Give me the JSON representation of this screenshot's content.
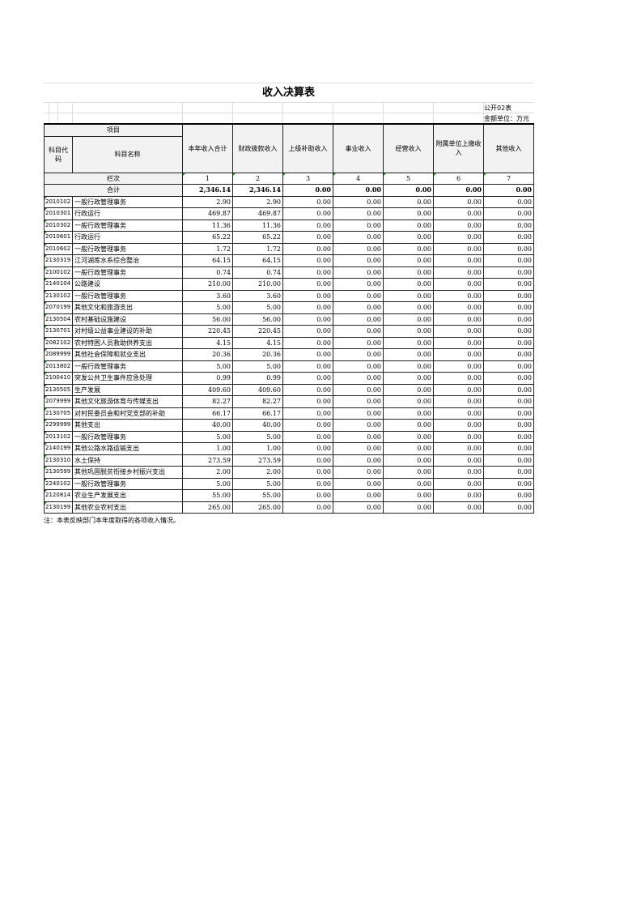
{
  "title": "收入决算表",
  "form_no": "公开02表",
  "unit": "金额单位：万元",
  "headers": {
    "item": "项目",
    "code": "科目代码",
    "name": "科目名称",
    "columns": [
      "本年收入合计",
      "财政拨款收入",
      "上级补助收入",
      "事业收入",
      "经营收入",
      "附属单位上缴收入",
      "其他收入"
    ],
    "index_label": "栏次",
    "index": [
      "1",
      "2",
      "3",
      "4",
      "5",
      "6",
      "7"
    ]
  },
  "total": {
    "label": "合计",
    "values": [
      "2,346.14",
      "2,346.14",
      "0.00",
      "0.00",
      "0.00",
      "0.00",
      "0.00"
    ]
  },
  "rows": [
    {
      "code": "2010102",
      "name": "一般行政管理事务",
      "values": [
        "2.90",
        "2.90",
        "0.00",
        "0.00",
        "0.00",
        "0.00",
        "0.00"
      ]
    },
    {
      "code": "2010301",
      "name": "行政运行",
      "values": [
        "469.87",
        "469.87",
        "0.00",
        "0.00",
        "0.00",
        "0.00",
        "0.00"
      ]
    },
    {
      "code": "2010302",
      "name": "一般行政管理事务",
      "values": [
        "11.36",
        "11.36",
        "0.00",
        "0.00",
        "0.00",
        "0.00",
        "0.00"
      ]
    },
    {
      "code": "2010601",
      "name": "行政运行",
      "values": [
        "65.22",
        "65.22",
        "0.00",
        "0.00",
        "0.00",
        "0.00",
        "0.00"
      ]
    },
    {
      "code": "2010602",
      "name": "一般行政管理事务",
      "values": [
        "1.72",
        "1.72",
        "0.00",
        "0.00",
        "0.00",
        "0.00",
        "0.00"
      ]
    },
    {
      "code": "2130319",
      "name": "江河湖库水系综合整治",
      "values": [
        "64.15",
        "64.15",
        "0.00",
        "0.00",
        "0.00",
        "0.00",
        "0.00"
      ]
    },
    {
      "code": "2100102",
      "name": "一般行政管理事务",
      "values": [
        "0.74",
        "0.74",
        "0.00",
        "0.00",
        "0.00",
        "0.00",
        "0.00"
      ]
    },
    {
      "code": "2140104",
      "name": "公路建设",
      "values": [
        "210.00",
        "210.00",
        "0.00",
        "0.00",
        "0.00",
        "0.00",
        "0.00"
      ]
    },
    {
      "code": "2130102",
      "name": "一般行政管理事务",
      "values": [
        "3.60",
        "3.60",
        "0.00",
        "0.00",
        "0.00",
        "0.00",
        "0.00"
      ]
    },
    {
      "code": "2070199",
      "name": "其他文化和旅游支出",
      "values": [
        "5.00",
        "5.00",
        "0.00",
        "0.00",
        "0.00",
        "0.00",
        "0.00"
      ]
    },
    {
      "code": "2130504",
      "name": "农村基础设施建设",
      "values": [
        "56.00",
        "56.00",
        "0.00",
        "0.00",
        "0.00",
        "0.00",
        "0.00"
      ]
    },
    {
      "code": "2130701",
      "name": "对村级公益事业建设的补助",
      "values": [
        "220.45",
        "220.45",
        "0.00",
        "0.00",
        "0.00",
        "0.00",
        "0.00"
      ]
    },
    {
      "code": "2082102",
      "name": "农村特困人员救助供养支出",
      "values": [
        "4.15",
        "4.15",
        "0.00",
        "0.00",
        "0.00",
        "0.00",
        "0.00"
      ]
    },
    {
      "code": "2089999",
      "name": "其他社会保障和就业支出",
      "values": [
        "20.36",
        "20.36",
        "0.00",
        "0.00",
        "0.00",
        "0.00",
        "0.00"
      ]
    },
    {
      "code": "2013802",
      "name": "一般行政管理事务",
      "values": [
        "5.00",
        "5.00",
        "0.00",
        "0.00",
        "0.00",
        "0.00",
        "0.00"
      ]
    },
    {
      "code": "2100410",
      "name": "突发公共卫生事件应急处理",
      "values": [
        "0.99",
        "0.99",
        "0.00",
        "0.00",
        "0.00",
        "0.00",
        "0.00"
      ]
    },
    {
      "code": "2130505",
      "name": "生产发展",
      "values": [
        "409.60",
        "409.60",
        "0.00",
        "0.00",
        "0.00",
        "0.00",
        "0.00"
      ]
    },
    {
      "code": "2079999",
      "name": "其他文化旅游体育与传媒支出",
      "values": [
        "82.27",
        "82.27",
        "0.00",
        "0.00",
        "0.00",
        "0.00",
        "0.00"
      ]
    },
    {
      "code": "2130705",
      "name": "对村民委员会和村党支部的补助",
      "values": [
        "66.17",
        "66.17",
        "0.00",
        "0.00",
        "0.00",
        "0.00",
        "0.00"
      ]
    },
    {
      "code": "2299999",
      "name": "其他支出",
      "values": [
        "40.00",
        "40.00",
        "0.00",
        "0.00",
        "0.00",
        "0.00",
        "0.00"
      ]
    },
    {
      "code": "2013102",
      "name": "一般行政管理事务",
      "values": [
        "5.00",
        "5.00",
        "0.00",
        "0.00",
        "0.00",
        "0.00",
        "0.00"
      ]
    },
    {
      "code": "2140199",
      "name": "其他公路水路运输支出",
      "values": [
        "1.00",
        "1.00",
        "0.00",
        "0.00",
        "0.00",
        "0.00",
        "0.00"
      ]
    },
    {
      "code": "2130310",
      "name": "水土保持",
      "values": [
        "273.59",
        "273.59",
        "0.00",
        "0.00",
        "0.00",
        "0.00",
        "0.00"
      ]
    },
    {
      "code": "2130599",
      "name": "其他巩固脱贫衔接乡村振兴支出",
      "values": [
        "2.00",
        "2.00",
        "0.00",
        "0.00",
        "0.00",
        "0.00",
        "0.00"
      ]
    },
    {
      "code": "2240102",
      "name": "一般行政管理事务",
      "values": [
        "5.00",
        "5.00",
        "0.00",
        "0.00",
        "0.00",
        "0.00",
        "0.00"
      ]
    },
    {
      "code": "2120814",
      "name": "农业生产发展支出",
      "values": [
        "55.00",
        "55.00",
        "0.00",
        "0.00",
        "0.00",
        "0.00",
        "0.00"
      ]
    },
    {
      "code": "2130199",
      "name": "其他农业农村支出",
      "values": [
        "265.00",
        "265.00",
        "0.00",
        "0.00",
        "0.00",
        "0.00",
        "0.00"
      ]
    }
  ],
  "note": "注：本表反映部门本年度取得的各项收入情况。"
}
